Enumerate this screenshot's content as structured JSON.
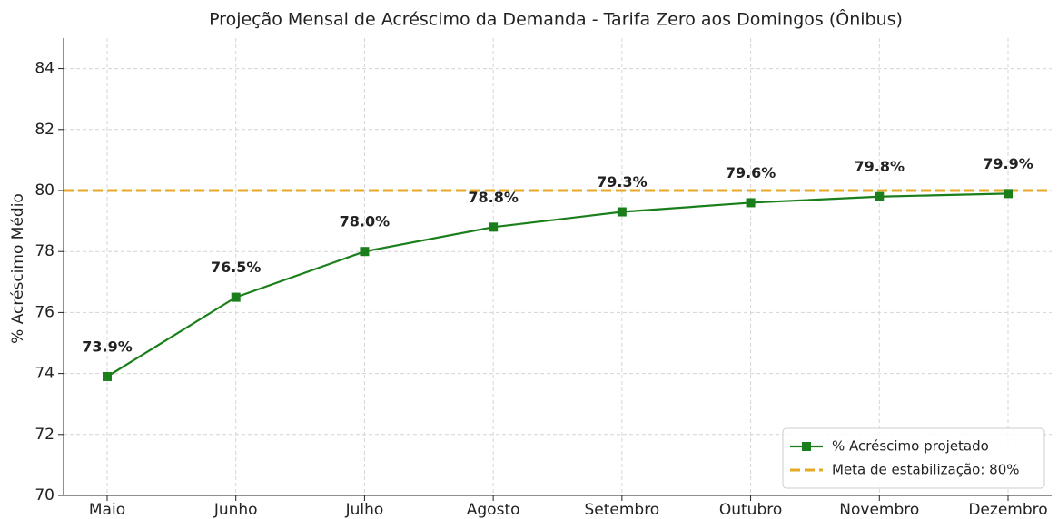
{
  "chart_data": {
    "type": "line",
    "title": "Projeção Mensal de Acréscimo da Demanda - Tarifa Zero aos Domingos (Ônibus)",
    "y_label": "% Acréscimo Médio",
    "categories": [
      "Maio",
      "Junho",
      "Julho",
      "Agosto",
      "Setembro",
      "Outubro",
      "Novembro",
      "Dezembro"
    ],
    "series": [
      {
        "name": "% Acréscimo projetado",
        "color": "#1a7f1a",
        "marker": "square",
        "values": [
          73.9,
          76.5,
          78.0,
          78.8,
          79.3,
          79.6,
          79.8,
          79.9
        ],
        "value_labels": [
          "73.9%",
          "76.5%",
          "78.0%",
          "78.8%",
          "79.3%",
          "79.6%",
          "79.8%",
          "79.9%"
        ]
      }
    ],
    "reference_lines": [
      {
        "name": "Meta de estabilização: 80%",
        "value": 80,
        "color": "#e6a827",
        "style": "dashed"
      }
    ],
    "ylim": [
      70,
      85
    ],
    "yticks": [
      70,
      72,
      74,
      76,
      78,
      80,
      82,
      84
    ],
    "grid": true,
    "legend": "lower right"
  }
}
